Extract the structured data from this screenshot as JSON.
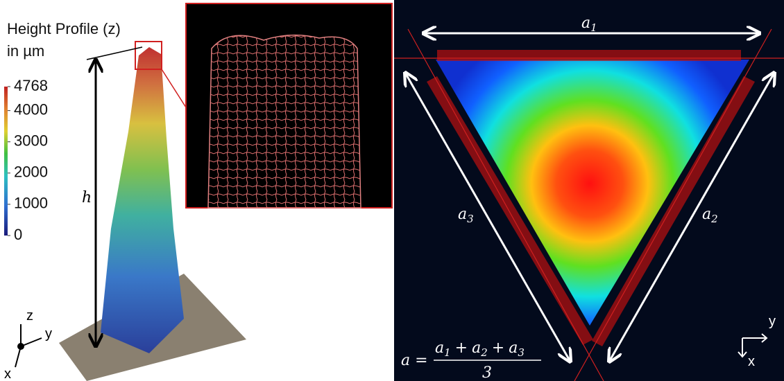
{
  "left_panel": {
    "colorbar": {
      "title": "Height Profile (z)",
      "unit": "in µm",
      "ticks": [
        0,
        1000,
        2000,
        3000,
        4000,
        4768
      ]
    },
    "height_label": "h",
    "axes": {
      "z": "z",
      "y": "y",
      "x": "x"
    }
  },
  "right_panel": {
    "sides": [
      {
        "symbol": "a",
        "subscript": "1"
      },
      {
        "symbol": "a",
        "subscript": "2"
      },
      {
        "symbol": "a",
        "subscript": "3"
      }
    ],
    "formula": {
      "lhs": "a",
      "equals": "=",
      "plus": "+",
      "denominator": "3"
    },
    "axes": {
      "y": "y",
      "x": "x"
    }
  }
}
